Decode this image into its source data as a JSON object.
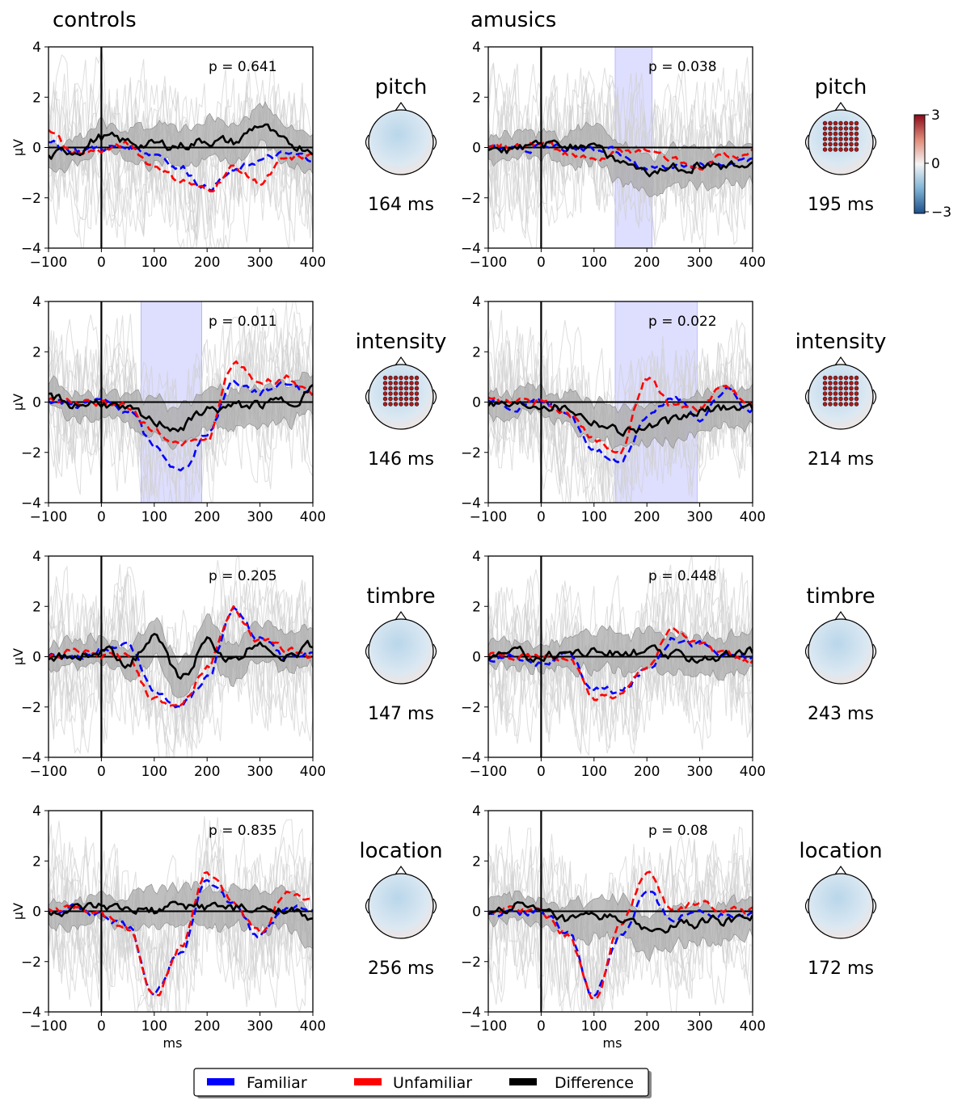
{
  "groups": [
    "controls",
    "amusics"
  ],
  "xlabel": "ms",
  "ylabel": "μV",
  "colorbar": {
    "ticks": [
      "3",
      "0",
      "−3"
    ],
    "cmap_top": "#8b0a1a",
    "cmap_mid": "#f4f4f4",
    "cmap_bottom": "#1d4f8c"
  },
  "legend": [
    {
      "name": "Familiar",
      "color": "#0000ff",
      "dash": "solid"
    },
    {
      "name": "Unfamiliar",
      "color": "#ff0000",
      "dash": "solid"
    },
    {
      "name": "Difference",
      "color": "#000000",
      "dash": "solid"
    }
  ],
  "colors": {
    "familiar": "#0000ff",
    "unfamiliar": "#ff0000",
    "difference": "#000000",
    "ci": "#a9a9a9",
    "cluster": "#c8c8ff"
  },
  "chart_data": [
    {
      "type": "line",
      "group": "controls",
      "feature": "pitch",
      "p": "p = 0.641",
      "topo_time": "164 ms",
      "xlim": [
        -100,
        400
      ],
      "ylim": [
        -4,
        4
      ],
      "xticks": [
        "−100",
        "0",
        "100",
        "200",
        "300",
        "400"
      ],
      "yticks": [
        "4",
        "2",
        "0",
        "−2",
        "−4"
      ],
      "cluster": null,
      "series": [
        {
          "name": "Familiar",
          "x": [
            -100,
            -50,
            0,
            50,
            100,
            150,
            200,
            250,
            300,
            350,
            400
          ],
          "y": [
            0.1,
            -0.1,
            0,
            0,
            -0.2,
            -0.8,
            -1.6,
            -1.0,
            -0.5,
            -0.3,
            -0.4
          ]
        },
        {
          "name": "Unfamiliar",
          "x": [
            -100,
            -50,
            0,
            50,
            100,
            150,
            200,
            250,
            300,
            350,
            400
          ],
          "y": [
            0.6,
            -0.2,
            -0.1,
            0.1,
            -0.7,
            -1.3,
            -1.7,
            -0.8,
            -1.4,
            -0.5,
            -0.3
          ]
        },
        {
          "name": "Difference",
          "x": [
            -100,
            -50,
            0,
            50,
            100,
            150,
            200,
            250,
            300,
            350,
            400
          ],
          "y": [
            -0.4,
            -0.1,
            0.4,
            0.2,
            0.1,
            0.1,
            0.3,
            0.2,
            0.9,
            0.1,
            0
          ]
        }
      ]
    },
    {
      "type": "line",
      "group": "controls",
      "feature": "intensity",
      "p": "p = 0.011",
      "topo_time": "146 ms",
      "xlim": [
        -100,
        400
      ],
      "ylim": [
        -4,
        4
      ],
      "xticks": [
        "−100",
        "0",
        "100",
        "200",
        "300",
        "400"
      ],
      "yticks": [
        "4",
        "2",
        "0",
        "−2",
        "−4"
      ],
      "cluster": [
        75,
        190
      ],
      "series": [
        {
          "name": "Familiar",
          "x": [
            -100,
            -50,
            0,
            50,
            100,
            150,
            200,
            250,
            300,
            350,
            400
          ],
          "y": [
            0,
            -0.1,
            0,
            -0.3,
            -1.8,
            -2.8,
            -1.2,
            0.8,
            0.4,
            0.8,
            0.3
          ]
        },
        {
          "name": "Unfamiliar",
          "x": [
            -100,
            -50,
            0,
            50,
            100,
            150,
            200,
            250,
            300,
            350,
            400
          ],
          "y": [
            0.2,
            0,
            0,
            -0.2,
            -1.1,
            -1.7,
            -1.5,
            1.5,
            0.8,
            1.0,
            0.2
          ]
        },
        {
          "name": "Difference",
          "x": [
            -100,
            -50,
            0,
            50,
            100,
            150,
            200,
            250,
            300,
            350,
            400
          ],
          "y": [
            0.2,
            -0.1,
            0,
            -0.4,
            -0.8,
            -1.0,
            -0.3,
            -0.2,
            -0.1,
            0,
            0.5
          ]
        }
      ]
    },
    {
      "type": "line",
      "group": "controls",
      "feature": "timbre",
      "p": "p = 0.205",
      "topo_time": "147 ms",
      "xlim": [
        -100,
        400
      ],
      "ylim": [
        -4,
        4
      ],
      "xticks": [
        "−100",
        "0",
        "100",
        "200",
        "300",
        "400"
      ],
      "yticks": [
        "4",
        "2",
        "0",
        "−2",
        "−4"
      ],
      "cluster": null,
      "series": [
        {
          "name": "Familiar",
          "x": [
            -100,
            -50,
            0,
            50,
            100,
            150,
            200,
            250,
            300,
            350,
            400
          ],
          "y": [
            0,
            0,
            0.3,
            0.5,
            -1.4,
            -1.9,
            -0.8,
            1.9,
            0.8,
            0,
            0.1
          ]
        },
        {
          "name": "Unfamiliar",
          "x": [
            -100,
            -50,
            0,
            50,
            100,
            150,
            200,
            250,
            300,
            350,
            400
          ],
          "y": [
            0,
            0.2,
            0,
            0,
            -1.7,
            -1.8,
            -0.4,
            1.9,
            0.6,
            0.3,
            0
          ]
        },
        {
          "name": "Difference",
          "x": [
            -100,
            -50,
            0,
            50,
            100,
            150,
            200,
            250,
            300,
            350,
            400
          ],
          "y": [
            0,
            0,
            0.3,
            -0.2,
            0.7,
            -0.9,
            0.6,
            -0.2,
            0.6,
            0,
            0.4
          ]
        }
      ]
    },
    {
      "type": "line",
      "group": "controls",
      "feature": "location",
      "p": "p = 0.835",
      "topo_time": "256 ms",
      "xlim": [
        -100,
        400
      ],
      "ylim": [
        -4,
        4
      ],
      "xticks": [
        "−100",
        "0",
        "100",
        "200",
        "300",
        "400"
      ],
      "yticks": [
        "4",
        "2",
        "0",
        "−2",
        "−4"
      ],
      "cluster": null,
      "series": [
        {
          "name": "Familiar",
          "x": [
            -100,
            -50,
            0,
            50,
            100,
            150,
            200,
            250,
            300,
            350,
            400
          ],
          "y": [
            0,
            0.1,
            -0.2,
            -0.6,
            -3.3,
            -1.5,
            1.3,
            0.2,
            -1.0,
            0.1,
            0.2
          ]
        },
        {
          "name": "Unfamiliar",
          "x": [
            -100,
            -50,
            0,
            50,
            100,
            150,
            200,
            250,
            300,
            350,
            400
          ],
          "y": [
            0,
            0.2,
            -0.2,
            -0.7,
            -3.5,
            -1.4,
            1.5,
            0.4,
            -0.8,
            0.7,
            0.5
          ]
        },
        {
          "name": "Difference",
          "x": [
            -100,
            -50,
            0,
            50,
            100,
            150,
            200,
            250,
            300,
            350,
            400
          ],
          "y": [
            0,
            0,
            0.1,
            0,
            0,
            0.2,
            0.2,
            0.1,
            0,
            0.2,
            -0.5
          ]
        }
      ]
    },
    {
      "type": "line",
      "group": "amusics",
      "feature": "pitch",
      "p": "p = 0.038",
      "topo_time": "195 ms",
      "xlim": [
        -100,
        400
      ],
      "ylim": [
        -4,
        4
      ],
      "xticks": [
        "−100",
        "0",
        "100",
        "200",
        "300",
        "400"
      ],
      "yticks": [
        "4",
        "2",
        "0",
        "−2",
        "−4"
      ],
      "cluster": [
        140,
        210
      ],
      "series": [
        {
          "name": "Familiar",
          "x": [
            -100,
            -50,
            0,
            50,
            100,
            150,
            200,
            250,
            300,
            350,
            400
          ],
          "y": [
            0,
            -0.1,
            0,
            -0.1,
            0,
            -0.2,
            -0.8,
            -0.7,
            -0.8,
            -0.6,
            -0.5
          ]
        },
        {
          "name": "Unfamiliar",
          "x": [
            -100,
            -50,
            0,
            50,
            100,
            150,
            200,
            250,
            300,
            350,
            400
          ],
          "y": [
            0.1,
            0,
            0.2,
            -0.3,
            -0.5,
            -0.2,
            -0.1,
            -0.5,
            -0.8,
            -0.3,
            -0.2
          ]
        },
        {
          "name": "Difference",
          "x": [
            -100,
            -50,
            0,
            50,
            100,
            150,
            200,
            250,
            300,
            350,
            400
          ],
          "y": [
            0,
            -0.1,
            0.1,
            0,
            0.2,
            -0.6,
            -1.1,
            -0.8,
            -0.7,
            -0.8,
            -0.7
          ]
        }
      ]
    },
    {
      "type": "line",
      "group": "amusics",
      "feature": "intensity",
      "p": "p = 0.022",
      "topo_time": "214 ms",
      "xlim": [
        -100,
        400
      ],
      "ylim": [
        -4,
        4
      ],
      "xticks": [
        "−100",
        "0",
        "100",
        "200",
        "300",
        "400"
      ],
      "yticks": [
        "4",
        "2",
        "0",
        "−2",
        "−4"
      ],
      "cluster": [
        140,
        295
      ],
      "series": [
        {
          "name": "Familiar",
          "x": [
            -100,
            -50,
            0,
            50,
            100,
            150,
            200,
            250,
            300,
            350,
            400
          ],
          "y": [
            0,
            -0.1,
            0.1,
            -0.5,
            -1.9,
            -2.4,
            -0.6,
            0.2,
            -0.6,
            0.5,
            -0.3
          ]
        },
        {
          "name": "Unfamiliar",
          "x": [
            -100,
            -50,
            0,
            50,
            100,
            150,
            200,
            250,
            300,
            350,
            400
          ],
          "y": [
            0.1,
            0,
            0,
            -0.5,
            -1.5,
            -1.9,
            1.0,
            -0.2,
            -0.2,
            0.6,
            0
          ]
        },
        {
          "name": "Difference",
          "x": [
            -100,
            -50,
            0,
            50,
            100,
            150,
            200,
            250,
            300,
            350,
            400
          ],
          "y": [
            0,
            -0.1,
            0,
            -0.2,
            -0.7,
            -1.1,
            -1.0,
            -0.8,
            -0.4,
            -0.2,
            -0.2
          ]
        }
      ]
    },
    {
      "type": "line",
      "group": "amusics",
      "feature": "timbre",
      "p": "p = 0.448",
      "topo_time": "243 ms",
      "xlim": [
        -100,
        400
      ],
      "ylim": [
        -4,
        4
      ],
      "xticks": [
        "−100",
        "0",
        "100",
        "200",
        "300",
        "400"
      ],
      "yticks": [
        "4",
        "2",
        "0",
        "−2",
        "−4"
      ],
      "cluster": null,
      "series": [
        {
          "name": "Familiar",
          "x": [
            -100,
            -50,
            0,
            50,
            100,
            150,
            200,
            250,
            300,
            350,
            400
          ],
          "y": [
            0,
            0,
            -0.2,
            0,
            -1.3,
            -1.4,
            -0.5,
            0.8,
            0.5,
            0,
            0
          ]
        },
        {
          "name": "Unfamiliar",
          "x": [
            -100,
            -50,
            0,
            50,
            100,
            150,
            200,
            250,
            300,
            350,
            400
          ],
          "y": [
            0,
            0,
            0,
            0,
            -1.6,
            -1.5,
            -0.3,
            1.1,
            0.5,
            0,
            -0.2
          ]
        },
        {
          "name": "Difference",
          "x": [
            -100,
            -50,
            0,
            50,
            100,
            150,
            200,
            250,
            300,
            350,
            400
          ],
          "y": [
            0,
            0.1,
            0,
            0.2,
            0.2,
            0.1,
            0.2,
            0,
            0,
            0,
            0.2
          ]
        }
      ]
    },
    {
      "type": "line",
      "group": "amusics",
      "feature": "location",
      "p": "p = 0.08",
      "topo_time": "172 ms",
      "xlim": [
        -100,
        400
      ],
      "ylim": [
        -4,
        4
      ],
      "xticks": [
        "−100",
        "0",
        "100",
        "200",
        "300",
        "400"
      ],
      "yticks": [
        "4",
        "2",
        "0",
        "−2",
        "−4"
      ],
      "cluster": null,
      "series": [
        {
          "name": "Familiar",
          "x": [
            -100,
            -50,
            0,
            50,
            100,
            150,
            200,
            250,
            300,
            350,
            400
          ],
          "y": [
            0,
            0,
            0,
            -0.8,
            -3.4,
            -1.0,
            0.7,
            -0.3,
            0,
            -0.1,
            0
          ]
        },
        {
          "name": "Unfamiliar",
          "x": [
            -100,
            -50,
            0,
            50,
            100,
            150,
            200,
            250,
            300,
            350,
            400
          ],
          "y": [
            0,
            0.1,
            0,
            -0.9,
            -3.5,
            -0.5,
            1.5,
            0,
            0.3,
            0,
            0
          ]
        },
        {
          "name": "Difference",
          "x": [
            -100,
            -50,
            0,
            50,
            100,
            150,
            200,
            250,
            300,
            350,
            400
          ],
          "y": [
            0,
            0.2,
            -0.1,
            -0.4,
            -0.3,
            -0.2,
            -0.9,
            -0.6,
            -0.5,
            -0.4,
            -0.2
          ]
        }
      ]
    }
  ]
}
